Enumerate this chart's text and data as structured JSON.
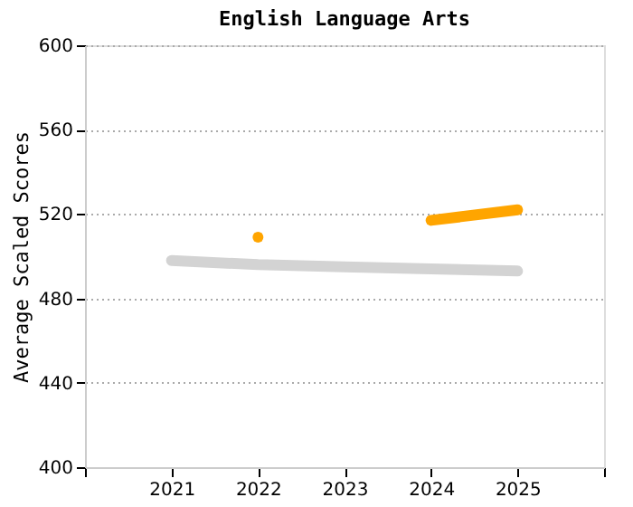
{
  "chart_data": {
    "type": "line",
    "title": "English Language Arts",
    "ylabel": "Average Scaled Scores",
    "x": [
      2021,
      2022,
      2023,
      2024,
      2025
    ],
    "xlim": [
      2020,
      2026
    ],
    "xticks": [
      {
        "value": 2020,
        "label": null
      },
      2021,
      2022,
      2023,
      2024,
      2025,
      {
        "value": 2026,
        "label": null
      }
    ],
    "ylim": [
      400,
      600
    ],
    "yticks": [
      400,
      440,
      480,
      520,
      560,
      600
    ],
    "grid": "y",
    "line_style": "solid",
    "series": [
      {
        "color": "#d3d3d3",
        "values": [
          498,
          496,
          495,
          494,
          493
        ],
        "marker": "none"
      },
      {
        "color": "#ffa500",
        "values": [
          null,
          509,
          null,
          517,
          522
        ],
        "marker": "square"
      }
    ]
  }
}
